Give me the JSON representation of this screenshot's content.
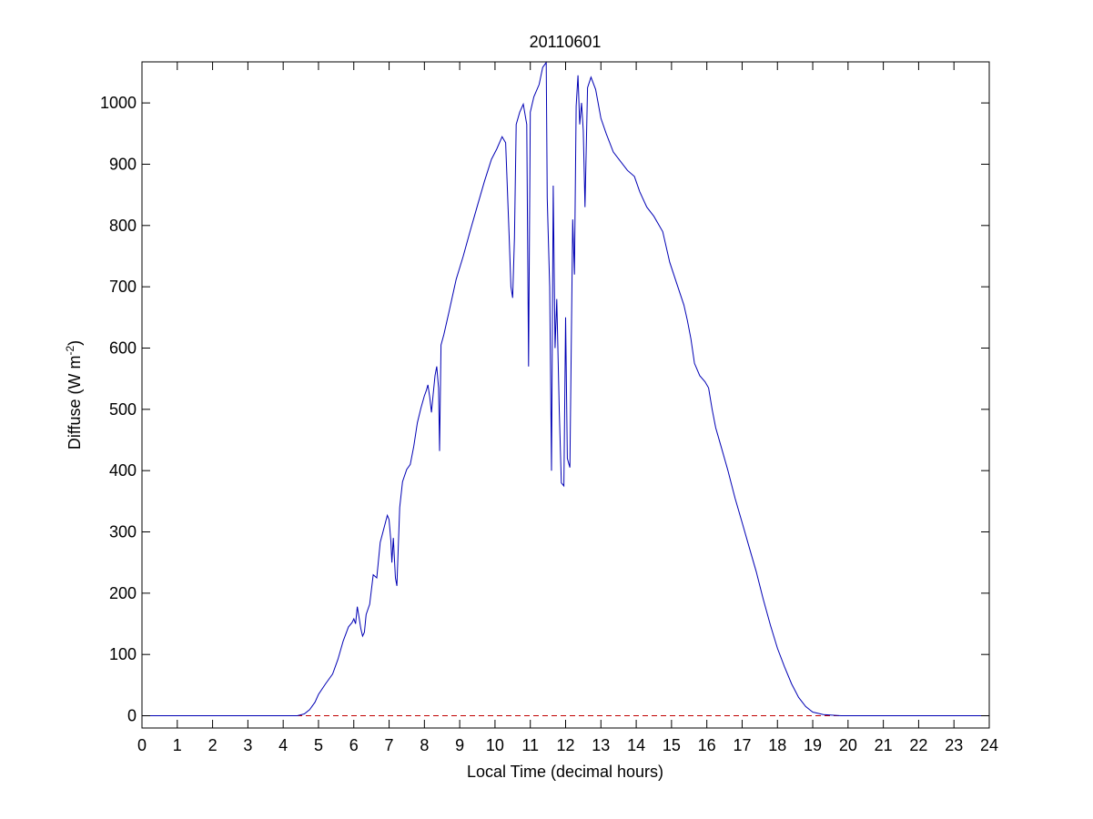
{
  "chart_data": {
    "type": "line",
    "title": "20110601",
    "xlabel": "Local Time (decimal hours)",
    "ylabel": "Diffuse (W m",
    "ylabel_sup": "-2",
    "ylabel_close": ")",
    "xlim": [
      0,
      24
    ],
    "ylim": [
      -20,
      1067
    ],
    "xticks": [
      0,
      1,
      2,
      3,
      4,
      5,
      6,
      7,
      8,
      9,
      10,
      11,
      12,
      13,
      14,
      15,
      16,
      17,
      18,
      19,
      20,
      21,
      22,
      23,
      24
    ],
    "yticks": [
      0,
      100,
      200,
      300,
      400,
      500,
      600,
      700,
      800,
      900,
      1000
    ],
    "grid": false,
    "legend": "none",
    "colors": {
      "series": "#0000b4",
      "baseline": "#c00000",
      "axes": "#000000"
    },
    "series": [
      {
        "color": "#0000b4",
        "points": [
          [
            0,
            0
          ],
          [
            4.4,
            0
          ],
          [
            4.6,
            3
          ],
          [
            4.75,
            10
          ],
          [
            4.9,
            22
          ],
          [
            5.0,
            35
          ],
          [
            5.2,
            52
          ],
          [
            5.4,
            68
          ],
          [
            5.55,
            92
          ],
          [
            5.7,
            122
          ],
          [
            5.85,
            145
          ],
          [
            5.95,
            152
          ],
          [
            6.0,
            158
          ],
          [
            6.05,
            150
          ],
          [
            6.1,
            178
          ],
          [
            6.15,
            160
          ],
          [
            6.2,
            142
          ],
          [
            6.25,
            130
          ],
          [
            6.3,
            136
          ],
          [
            6.35,
            165
          ],
          [
            6.45,
            182
          ],
          [
            6.55,
            230
          ],
          [
            6.65,
            225
          ],
          [
            6.75,
            283
          ],
          [
            6.85,
            305
          ],
          [
            6.95,
            327
          ],
          [
            7.0,
            320
          ],
          [
            7.05,
            285
          ],
          [
            7.08,
            250
          ],
          [
            7.12,
            290
          ],
          [
            7.18,
            225
          ],
          [
            7.22,
            212
          ],
          [
            7.3,
            340
          ],
          [
            7.38,
            382
          ],
          [
            7.5,
            402
          ],
          [
            7.6,
            410
          ],
          [
            7.7,
            440
          ],
          [
            7.8,
            478
          ],
          [
            7.9,
            502
          ],
          [
            8.0,
            522
          ],
          [
            8.05,
            530
          ],
          [
            8.1,
            540
          ],
          [
            8.15,
            520
          ],
          [
            8.2,
            495
          ],
          [
            8.25,
            525
          ],
          [
            8.3,
            555
          ],
          [
            8.35,
            570
          ],
          [
            8.4,
            535
          ],
          [
            8.43,
            432
          ],
          [
            8.47,
            605
          ],
          [
            8.55,
            622
          ],
          [
            8.7,
            660
          ],
          [
            8.9,
            712
          ],
          [
            9.1,
            750
          ],
          [
            9.3,
            792
          ],
          [
            9.5,
            832
          ],
          [
            9.7,
            872
          ],
          [
            9.9,
            908
          ],
          [
            10.05,
            925
          ],
          [
            10.2,
            945
          ],
          [
            10.3,
            935
          ],
          [
            10.4,
            785
          ],
          [
            10.45,
            700
          ],
          [
            10.5,
            682
          ],
          [
            10.55,
            780
          ],
          [
            10.6,
            965
          ],
          [
            10.7,
            985
          ],
          [
            10.8,
            998
          ],
          [
            10.9,
            965
          ],
          [
            10.95,
            570
          ],
          [
            11.0,
            985
          ],
          [
            11.1,
            1010
          ],
          [
            11.25,
            1030
          ],
          [
            11.35,
            1058
          ],
          [
            11.45,
            1066
          ],
          [
            11.48,
            845
          ],
          [
            11.55,
            700
          ],
          [
            11.6,
            400
          ],
          [
            11.65,
            865
          ],
          [
            11.7,
            600
          ],
          [
            11.75,
            680
          ],
          [
            11.82,
            500
          ],
          [
            11.88,
            380
          ],
          [
            11.95,
            375
          ],
          [
            12.0,
            650
          ],
          [
            12.05,
            420
          ],
          [
            12.12,
            405
          ],
          [
            12.2,
            810
          ],
          [
            12.25,
            720
          ],
          [
            12.3,
            995
          ],
          [
            12.35,
            1045
          ],
          [
            12.4,
            965
          ],
          [
            12.45,
            1000
          ],
          [
            12.5,
            955
          ],
          [
            12.55,
            830
          ],
          [
            12.62,
            1025
          ],
          [
            12.72,
            1042
          ],
          [
            12.85,
            1022
          ],
          [
            13.0,
            975
          ],
          [
            13.15,
            950
          ],
          [
            13.35,
            920
          ],
          [
            13.55,
            905
          ],
          [
            13.75,
            890
          ],
          [
            13.95,
            880
          ],
          [
            14.1,
            855
          ],
          [
            14.3,
            830
          ],
          [
            14.5,
            815
          ],
          [
            14.75,
            790
          ],
          [
            14.95,
            740
          ],
          [
            15.15,
            705
          ],
          [
            15.35,
            670
          ],
          [
            15.45,
            645
          ],
          [
            15.55,
            615
          ],
          [
            15.65,
            575
          ],
          [
            15.8,
            555
          ],
          [
            15.95,
            545
          ],
          [
            16.05,
            535
          ],
          [
            16.15,
            500
          ],
          [
            16.25,
            470
          ],
          [
            16.4,
            440
          ],
          [
            16.6,
            400
          ],
          [
            16.8,
            355
          ],
          [
            17.0,
            315
          ],
          [
            17.2,
            275
          ],
          [
            17.4,
            235
          ],
          [
            17.6,
            190
          ],
          [
            17.8,
            148
          ],
          [
            18.0,
            110
          ],
          [
            18.2,
            80
          ],
          [
            18.4,
            52
          ],
          [
            18.6,
            30
          ],
          [
            18.8,
            15
          ],
          [
            19.0,
            6
          ],
          [
            19.3,
            2
          ],
          [
            19.8,
            0
          ],
          [
            24,
            0
          ]
        ]
      }
    ],
    "baseline": {
      "y": 0,
      "style": "dashed",
      "color": "#c00000"
    }
  }
}
